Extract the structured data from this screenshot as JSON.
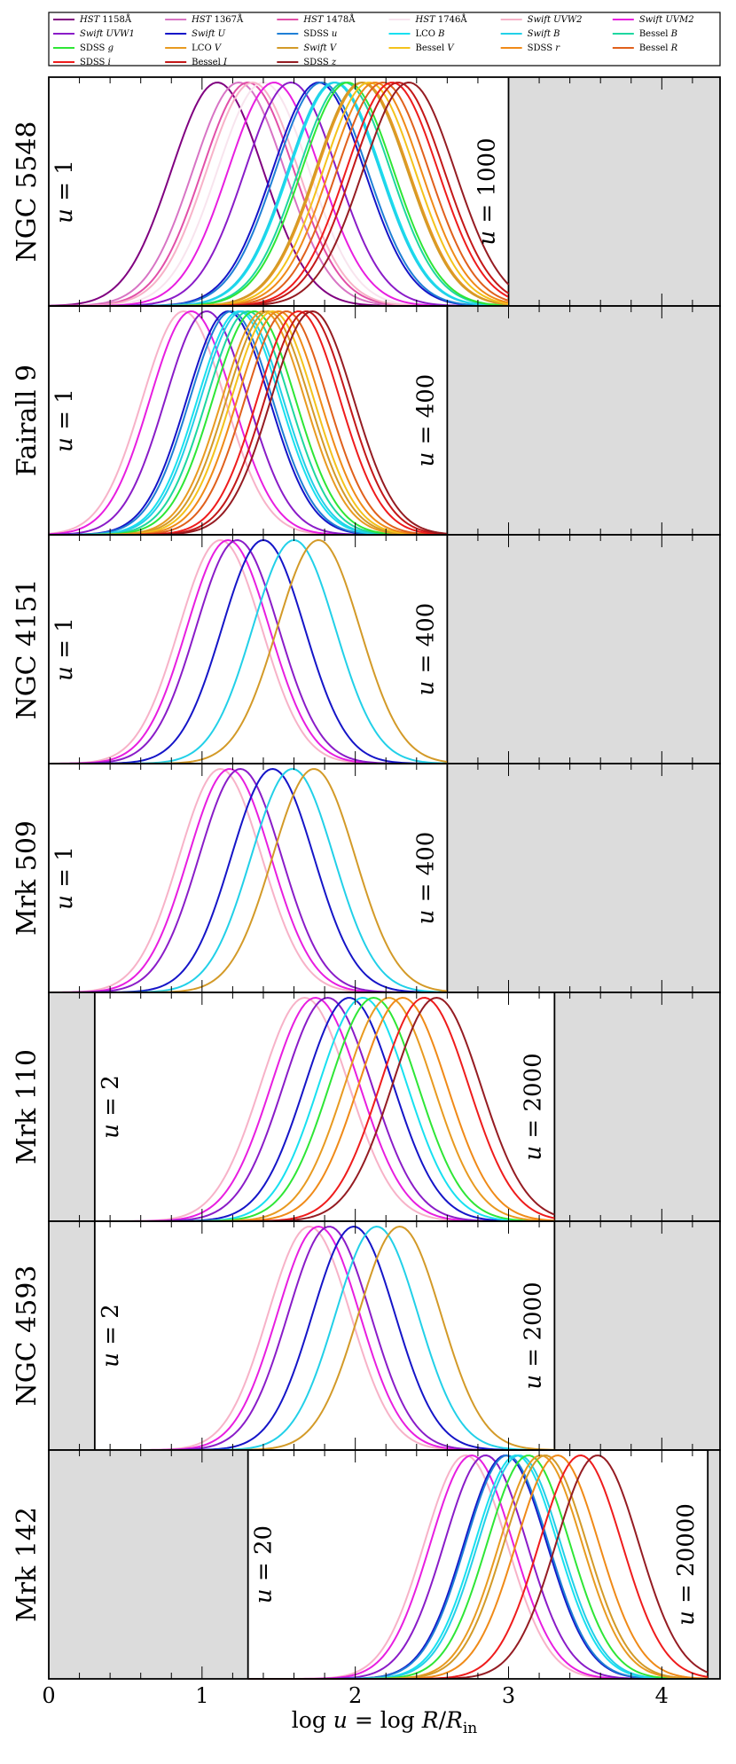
{
  "chart_data": {
    "type": "line",
    "xlabel": "log u = log R/R_in",
    "xlabel_parts": {
      "prefix": "log ",
      "u": "u",
      "mid": " = log ",
      "R": "R",
      "slash": "/",
      "Rin": "R",
      "sub": "in"
    },
    "xlim": [
      0,
      4.38
    ],
    "xticks": [
      0,
      1,
      2,
      3,
      4
    ],
    "xtick_labels": [
      "0",
      "1",
      "2",
      "3",
      "4"
    ],
    "ylim": [
      0,
      1
    ],
    "legend": {
      "placement": "top",
      "columns": 6,
      "entries": [
        {
          "band": "HST 1158Å",
          "parts": [
            {
              "t": "HST",
              "i": true
            },
            {
              "t": " 1158Å",
              "i": false
            }
          ],
          "color": "#800080"
        },
        {
          "band": "HST 1367Å",
          "parts": [
            {
              "t": "HST",
              "i": true
            },
            {
              "t": " 1367Å",
              "i": false
            }
          ],
          "color": "#d874c4"
        },
        {
          "band": "HST 1478Å",
          "parts": [
            {
              "t": "HST",
              "i": true
            },
            {
              "t": " 1478Å",
              "i": false
            }
          ],
          "color": "#e24fa8"
        },
        {
          "band": "HST 1746Å",
          "parts": [
            {
              "t": "HST",
              "i": true
            },
            {
              "t": " 1746Å",
              "i": false
            }
          ],
          "color": "#f8e4ee"
        },
        {
          "band": "Swift UVW2",
          "parts": [
            {
              "t": "Swift",
              "i": true
            },
            {
              "t": " ",
              "i": false
            },
            {
              "t": "UVW2",
              "i": true
            }
          ],
          "color": "#f7b2c8"
        },
        {
          "band": "Swift UVM2",
          "parts": [
            {
              "t": "Swift",
              "i": true
            },
            {
              "t": " ",
              "i": false
            },
            {
              "t": "UVM2",
              "i": true
            }
          ],
          "color": "#e81ee0"
        },
        {
          "band": "Swift UVW1",
          "parts": [
            {
              "t": "Swift",
              "i": true
            },
            {
              "t": " ",
              "i": false
            },
            {
              "t": "UVW1",
              "i": true
            }
          ],
          "color": "#8a1cc8"
        },
        {
          "band": "Swift U",
          "parts": [
            {
              "t": "Swift",
              "i": true
            },
            {
              "t": " ",
              "i": false
            },
            {
              "t": "U",
              "i": true
            }
          ],
          "color": "#1515c8"
        },
        {
          "band": "SDSS u",
          "parts": [
            {
              "t": "SDSS ",
              "i": false
            },
            {
              "t": "u",
              "i": true
            }
          ],
          "color": "#1f7fd6"
        },
        {
          "band": "LCO B",
          "parts": [
            {
              "t": "LCO ",
              "i": false
            },
            {
              "t": "B",
              "i": true
            }
          ],
          "color": "#18e0f0"
        },
        {
          "band": "Swift B",
          "parts": [
            {
              "t": "Swift",
              "i": true
            },
            {
              "t": " ",
              "i": false
            },
            {
              "t": "B",
              "i": true
            }
          ],
          "color": "#22d0e8"
        },
        {
          "band": "Bessel B",
          "parts": [
            {
              "t": "Bessel ",
              "i": false
            },
            {
              "t": "B",
              "i": true
            }
          ],
          "color": "#1ed7a0"
        },
        {
          "band": "SDSS g",
          "parts": [
            {
              "t": "SDSS ",
              "i": false
            },
            {
              "t": "g",
              "i": true
            }
          ],
          "color": "#2ee636"
        },
        {
          "band": "LCO V",
          "parts": [
            {
              "t": "LCO ",
              "i": false
            },
            {
              "t": "V",
              "i": true
            }
          ],
          "color": "#e89a20"
        },
        {
          "band": "Swift V",
          "parts": [
            {
              "t": "Swift",
              "i": true
            },
            {
              "t": " ",
              "i": false
            },
            {
              "t": "V",
              "i": true
            }
          ],
          "color": "#d39a28"
        },
        {
          "band": "Bessel V",
          "parts": [
            {
              "t": "Bessel ",
              "i": false
            },
            {
              "t": "V",
              "i": true
            }
          ],
          "color": "#f4c21c"
        },
        {
          "band": "SDSS r",
          "parts": [
            {
              "t": "SDSS ",
              "i": false
            },
            {
              "t": "r",
              "i": true
            }
          ],
          "color": "#f08a18"
        },
        {
          "band": "Bessel R",
          "parts": [
            {
              "t": "Bessel ",
              "i": false
            },
            {
              "t": "R",
              "i": true
            }
          ],
          "color": "#e0601c"
        },
        {
          "band": "SDSS i",
          "parts": [
            {
              "t": "SDSS ",
              "i": false
            },
            {
              "t": "i",
              "i": true
            }
          ],
          "color": "#ef1c1c"
        },
        {
          "band": "Bessel I",
          "parts": [
            {
              "t": "Bessel ",
              "i": false
            },
            {
              "t": "I",
              "i": true
            }
          ],
          "color": "#c41818"
        },
        {
          "band": "SDSS z",
          "parts": [
            {
              "t": "SDSS ",
              "i": false
            },
            {
              "t": "z",
              "i": true
            }
          ],
          "color": "#951c22"
        }
      ]
    },
    "panels": [
      {
        "name": "NGC 5548",
        "u_min_label": "1",
        "u_max_label": "1000",
        "log_u_min": 0.0,
        "log_u_max": 3.0,
        "width": 0.3,
        "series": [
          {
            "band": "HST 1158Å",
            "peak": 1.1
          },
          {
            "band": "HST 1367Å",
            "peak": 1.24
          },
          {
            "band": "HST 1478Å",
            "peak": 1.3
          },
          {
            "band": "HST 1746Å",
            "peak": 1.4
          },
          {
            "band": "Swift UVW2",
            "peak": 1.33
          },
          {
            "band": "Swift UVM2",
            "peak": 1.47
          },
          {
            "band": "Swift UVW1",
            "peak": 1.58
          },
          {
            "band": "Swift U",
            "peak": 1.76
          },
          {
            "band": "SDSS u",
            "peak": 1.78
          },
          {
            "band": "LCO B",
            "peak": 1.87
          },
          {
            "band": "Swift B",
            "peak": 1.86
          },
          {
            "band": "Bessel B",
            "peak": 1.93
          },
          {
            "band": "SDSS g",
            "peak": 1.95
          },
          {
            "band": "LCO V",
            "peak": 2.05
          },
          {
            "band": "Swift V",
            "peak": 2.04
          },
          {
            "band": "Bessel V",
            "peak": 2.09
          },
          {
            "band": "SDSS r",
            "peak": 2.13
          },
          {
            "band": "Bessel R",
            "peak": 2.18
          },
          {
            "band": "SDSS i",
            "peak": 2.24
          },
          {
            "band": "Bessel I",
            "peak": 2.28
          },
          {
            "band": "SDSS z",
            "peak": 2.35
          }
        ]
      },
      {
        "name": "Fairall 9",
        "u_min_label": "1",
        "u_max_label": "400",
        "log_u_min": 0.0,
        "log_u_max": 2.6,
        "width": 0.27,
        "series": [
          {
            "band": "Swift UVW2",
            "peak": 0.88
          },
          {
            "band": "Swift UVM2",
            "peak": 0.93
          },
          {
            "band": "Swift UVW1",
            "peak": 1.03
          },
          {
            "band": "Swift U",
            "peak": 1.17
          },
          {
            "band": "SDSS u",
            "peak": 1.19
          },
          {
            "band": "LCO B",
            "peak": 1.24
          },
          {
            "band": "Swift B",
            "peak": 1.26
          },
          {
            "band": "Bessel B",
            "peak": 1.3
          },
          {
            "band": "SDSS g",
            "peak": 1.34
          },
          {
            "band": "LCO V",
            "peak": 1.4
          },
          {
            "band": "Swift V",
            "peak": 1.43
          },
          {
            "band": "Bessel V",
            "peak": 1.46
          },
          {
            "band": "SDSS r",
            "peak": 1.5
          },
          {
            "band": "Bessel R",
            "peak": 1.55
          },
          {
            "band": "SDSS i",
            "peak": 1.63
          },
          {
            "band": "Bessel I",
            "peak": 1.68
          },
          {
            "band": "SDSS z",
            "peak": 1.72
          }
        ]
      },
      {
        "name": "NGC 4151",
        "u_min_label": "1",
        "u_max_label": "400",
        "log_u_min": 0.0,
        "log_u_max": 2.6,
        "width": 0.27,
        "series": [
          {
            "band": "Swift UVW2",
            "peak": 1.12
          },
          {
            "band": "Swift UVM2",
            "peak": 1.17
          },
          {
            "band": "Swift UVW1",
            "peak": 1.23
          },
          {
            "band": "Swift U",
            "peak": 1.4
          },
          {
            "band": "Swift B",
            "peak": 1.6
          },
          {
            "band": "Swift V",
            "peak": 1.76
          }
        ]
      },
      {
        "name": "Mrk 509",
        "u_min_label": "1",
        "u_max_label": "400",
        "log_u_min": 0.0,
        "log_u_max": 2.6,
        "width": 0.27,
        "series": [
          {
            "band": "Swift UVW2",
            "peak": 1.12
          },
          {
            "band": "Swift UVM2",
            "peak": 1.18
          },
          {
            "band": "Swift UVW1",
            "peak": 1.25
          },
          {
            "band": "Swift U",
            "peak": 1.46
          },
          {
            "band": "Swift B",
            "peak": 1.59
          },
          {
            "band": "Swift V",
            "peak": 1.73
          }
        ]
      },
      {
        "name": "Mrk 110",
        "u_min_label": "2",
        "u_max_label": "2000",
        "log_u_min": 0.3,
        "log_u_max": 3.3,
        "width": 0.29,
        "series": [
          {
            "band": "Swift UVW2",
            "peak": 1.67
          },
          {
            "band": "Swift UVM2",
            "peak": 1.74
          },
          {
            "band": "Swift UVW1",
            "peak": 1.82
          },
          {
            "band": "Swift U",
            "peak": 1.96
          },
          {
            "band": "LCO B",
            "peak": 2.05
          },
          {
            "band": "SDSS g",
            "peak": 2.12
          },
          {
            "band": "LCO V",
            "peak": 2.22
          },
          {
            "band": "SDSS r",
            "peak": 2.31
          },
          {
            "band": "SDSS i",
            "peak": 2.45
          },
          {
            "band": "SDSS z",
            "peak": 2.53
          }
        ]
      },
      {
        "name": "NGC 4593",
        "u_min_label": "2",
        "u_max_label": "2000",
        "log_u_min": 0.3,
        "log_u_max": 3.3,
        "width": 0.27,
        "series": [
          {
            "band": "Swift UVW2",
            "peak": 1.7
          },
          {
            "band": "Swift UVM2",
            "peak": 1.76
          },
          {
            "band": "Swift UVW1",
            "peak": 1.83
          },
          {
            "band": "Swift U",
            "peak": 1.99
          },
          {
            "band": "Swift B",
            "peak": 2.14
          },
          {
            "band": "Swift V",
            "peak": 2.29
          }
        ]
      },
      {
        "name": "Mrk 142",
        "u_min_label": "20",
        "u_max_label": "20000",
        "log_u_min": 1.3,
        "log_u_max": 4.3,
        "width": 0.27,
        "series": [
          {
            "band": "Swift UVW2",
            "peak": 2.72
          },
          {
            "band": "Swift UVM2",
            "peak": 2.76
          },
          {
            "band": "Swift UVW1",
            "peak": 2.85
          },
          {
            "band": "Swift U",
            "peak": 2.98
          },
          {
            "band": "SDSS u",
            "peak": 2.99
          },
          {
            "band": "LCO B",
            "peak": 3.05
          },
          {
            "band": "Swift B",
            "peak": 3.07
          },
          {
            "band": "SDSS g",
            "peak": 3.13
          },
          {
            "band": "LCO V",
            "peak": 3.21
          },
          {
            "band": "Swift V",
            "peak": 3.24
          },
          {
            "band": "SDSS r",
            "peak": 3.32
          },
          {
            "band": "SDSS i",
            "peak": 3.47
          },
          {
            "band": "SDSS z",
            "peak": 3.58
          }
        ]
      }
    ]
  }
}
